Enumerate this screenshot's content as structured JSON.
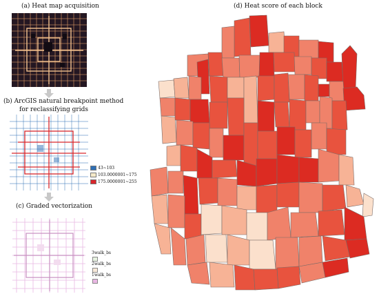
{
  "panels": {
    "a": {
      "caption": "(a) Heat map acquisition"
    },
    "b": {
      "caption_line1": "(b) ArcGIS natural breakpoint method",
      "caption_line2": "for reclassifying grids",
      "legend": [
        {
          "label": "43~103",
          "color": "#2f6fb5"
        },
        {
          "label": "103.0000001~175",
          "color": "#f5e9c8"
        },
        {
          "label": "175.0000001~255",
          "color": "#d9262b"
        }
      ]
    },
    "c": {
      "caption": "(c) Graded vectorization",
      "legend": [
        {
          "label": "3walk_bs",
          "color": "#e6f2e0"
        },
        {
          "label": "2walk_bs",
          "color": "#f7e8d8"
        },
        {
          "label": "1walk_bs",
          "color": "#e9b7e3"
        }
      ]
    },
    "d": {
      "caption": "(d) Heat score of each block"
    }
  },
  "colors": {
    "heat_dark": "#241722",
    "heat_line": "#e8a06a",
    "arrow": "#c8c8c8",
    "block_darkest": "#dc2b22",
    "block_dark": "#e8533e",
    "block_mid": "#f0826a",
    "block_light": "#f7b396",
    "block_lightest": "#fbe0cc",
    "block_border": "#7a6a66"
  }
}
